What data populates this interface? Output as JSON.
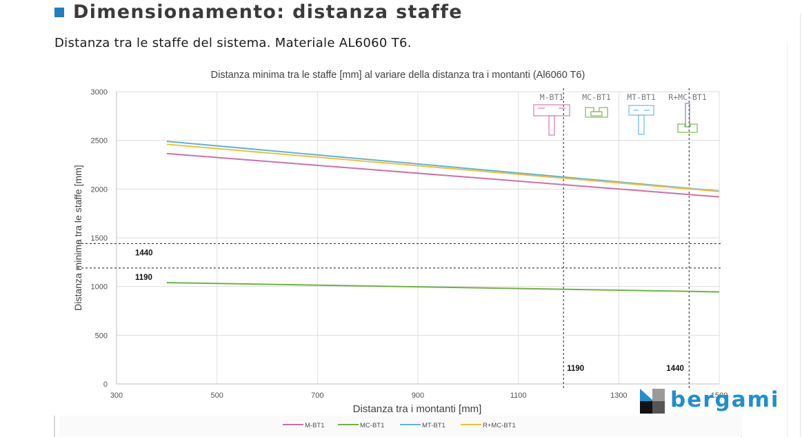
{
  "header": {
    "title": "Dimensionamento: distanza staffe",
    "subtitle": "Distanza tra le staffe del sistema. Materiale AL6060 T6."
  },
  "logo": {
    "text": "bergami"
  },
  "colors": {
    "accent": "#1f7fc2",
    "logo_blue": "#1e8fd0",
    "m_bt1": "#cc6fae",
    "mc_bt1": "#6cb33f",
    "mt_bt1": "#5ab4e0",
    "r_mc_bt1": "#f2c230"
  },
  "chart_data": {
    "type": "line",
    "title": "Distanza minima tra le staffe [mm] al variare della distanza tra i montanti (Al6060 T6)",
    "xlabel": "Distanza tra i montanti [mm]",
    "ylabel": "Distanza minima tra le staffe [mm]",
    "xlim": [
      300,
      1500
    ],
    "ylim": [
      0,
      3000
    ],
    "x_ticks": [
      300,
      500,
      700,
      900,
      1100,
      1300,
      1500
    ],
    "y_ticks": [
      0,
      500,
      1000,
      1500,
      2000,
      2500,
      3000
    ],
    "grid": true,
    "legend_position": "bottom",
    "x": [
      400,
      1500
    ],
    "series": [
      {
        "name": "M-BT1",
        "color": "#cc6fae",
        "values": [
          2365,
          1920
        ]
      },
      {
        "name": "MC-BT1",
        "color": "#6cb33f",
        "values": [
          1040,
          945
        ]
      },
      {
        "name": "MT-BT1",
        "color": "#5ab4e0",
        "values": [
          2490,
          1980
        ]
      },
      {
        "name": "R+MC-BT1",
        "color": "#f2c230",
        "values": [
          2460,
          1975
        ]
      }
    ],
    "reference_lines": [
      {
        "axis": "y",
        "value": 1440,
        "label": "1440"
      },
      {
        "axis": "y",
        "value": 1190,
        "label": "1190"
      },
      {
        "axis": "x",
        "value": 1190,
        "label": "1190"
      },
      {
        "axis": "x",
        "value": 1440,
        "label": "1440"
      }
    ],
    "profile_labels": [
      "M-BT1",
      "MC-BT1",
      "MT-BT1",
      "R+MC-BT1"
    ]
  }
}
